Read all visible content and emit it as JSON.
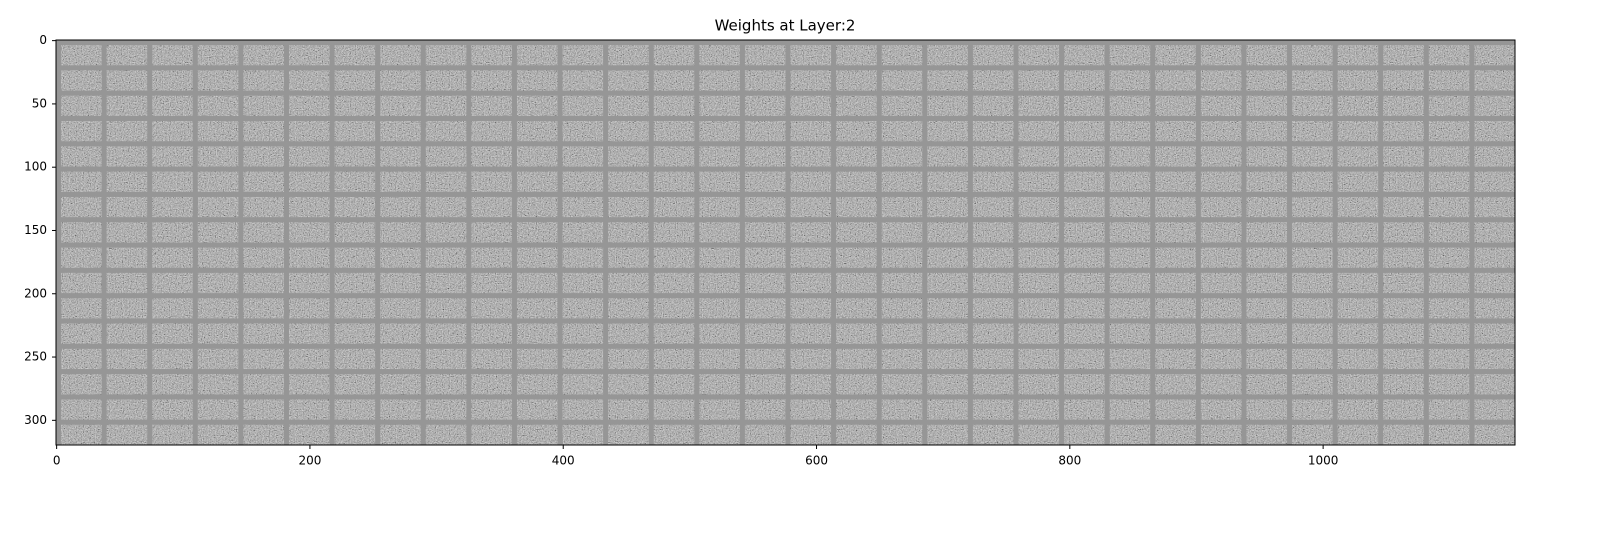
{
  "chart_data": {
    "type": "image",
    "title": "Weights at Layer:2",
    "xlim": [
      -0.5,
      1151.5
    ],
    "ylim": [
      319.5,
      -0.5
    ],
    "xticks": [
      0,
      200,
      400,
      600,
      800,
      1000
    ],
    "yticks": [
      0,
      50,
      100,
      150,
      200,
      250,
      300
    ],
    "colormap": "gray"
  }
}
